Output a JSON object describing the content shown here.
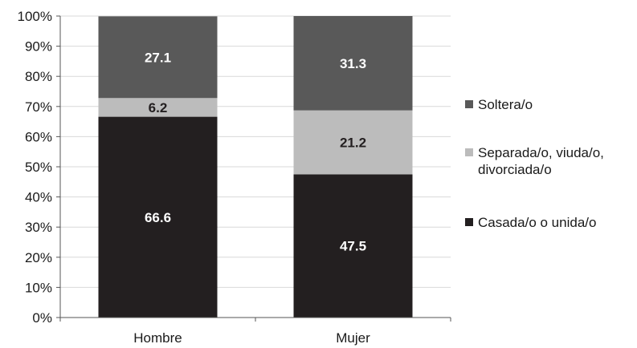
{
  "chart_data": {
    "type": "bar",
    "stacked": true,
    "categories": [
      "Hombre",
      "Mujer"
    ],
    "series": [
      {
        "name": "Casada/o o unida/o",
        "values": [
          66.6,
          47.5
        ],
        "color": "#231f20",
        "label_color": "#ffffff"
      },
      {
        "name": "Separada/o, viuda/o, divorciada/o",
        "values": [
          6.2,
          21.2
        ],
        "color": "#bcbcbc",
        "label_color": "#231f20"
      },
      {
        "name": "Soltera/o",
        "values": [
          27.1,
          31.3
        ],
        "color": "#595959",
        "label_color": "#ffffff"
      }
    ],
    "ylim": [
      0,
      100
    ],
    "yticks": [
      "0%",
      "10%",
      "20%",
      "30%",
      "40%",
      "50%",
      "60%",
      "70%",
      "80%",
      "90%",
      "100%"
    ],
    "grid": true,
    "legend_position": "right",
    "title": "",
    "xlabel": "",
    "ylabel": ""
  },
  "legend": {
    "items": [
      {
        "label": "Soltera/o",
        "color": "#595959"
      },
      {
        "label": "Separada/o, viuda/o, divorciada/o",
        "color": "#bcbcbc"
      },
      {
        "label": "Casada/o o unida/o",
        "color": "#231f20"
      }
    ]
  }
}
